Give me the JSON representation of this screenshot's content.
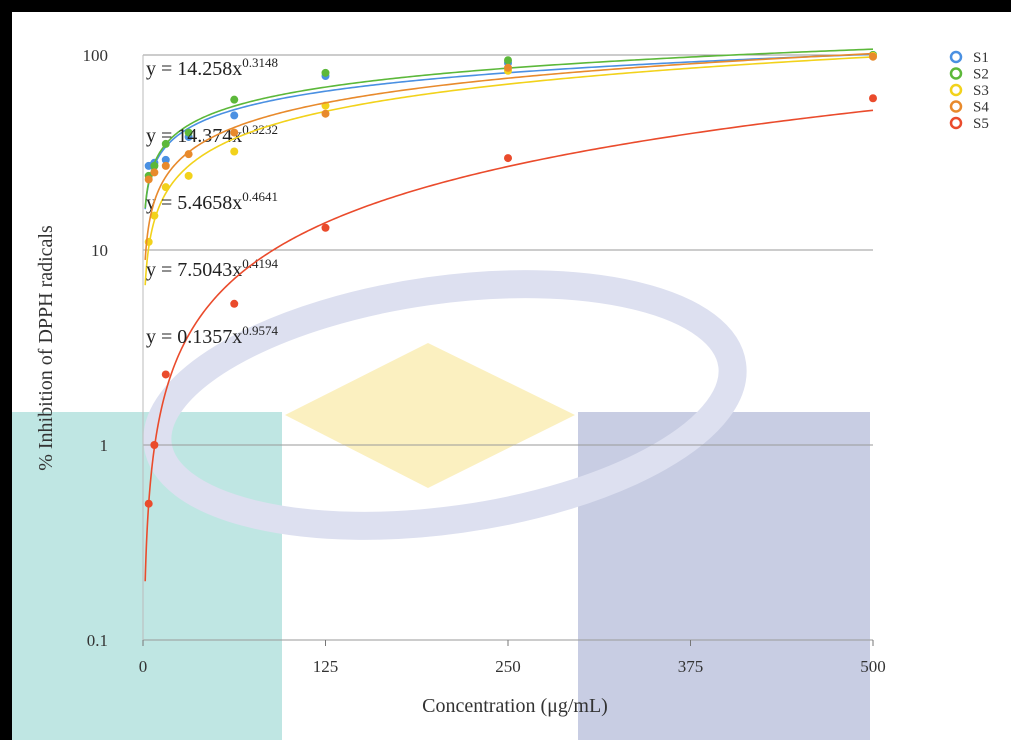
{
  "chart_data": {
    "type": "scatter",
    "x_label": "Concentration (μg/mL)",
    "y_label": "% Inhibition of DPPH radicals",
    "x": [
      3.9,
      7.8,
      15.6,
      31.25,
      62.5,
      125,
      250,
      500
    ],
    "xlim": [
      0,
      500
    ],
    "xticks": [
      0,
      125,
      250,
      375,
      500
    ],
    "ylim": [
      0.1,
      100
    ],
    "yticks": [
      0.1,
      1,
      10,
      100
    ],
    "log_y": true,
    "grid": true,
    "legend": "right",
    "series": [
      {
        "name": "S1",
        "color": "#4a90e2",
        "values": [
          27,
          28,
          29,
          38,
          49,
          78,
          91,
          100
        ],
        "trendline": {
          "coefficient": 14.258,
          "exponent": 0.3148,
          "label": "y = 14.258x"
        }
      },
      {
        "name": "S2",
        "color": "#5cb83a",
        "values": [
          24,
          27,
          35,
          40,
          59,
          81,
          94,
          100
        ],
        "trendline": {
          "coefficient": 14.374,
          "exponent": 0.3232,
          "label": "y = 14.374x"
        }
      },
      {
        "name": "S3",
        "color": "#f2d21b",
        "values": [
          11,
          15,
          21,
          24,
          32,
          55,
          83,
          99
        ],
        "trendline": {
          "coefficient": 5.4658,
          "exponent": 0.4641,
          "label": "y = 5.4658x"
        }
      },
      {
        "name": "S4",
        "color": "#e88a2c",
        "values": [
          23,
          25,
          27,
          31,
          40,
          50,
          86,
          98
        ],
        "trendline": {
          "coefficient": 7.5043,
          "exponent": 0.4194,
          "label": "y = 7.5043x"
        }
      },
      {
        "name": "S5",
        "color": "#ea4b2c",
        "values": [
          0.5,
          1.0,
          2.3,
          null,
          5.3,
          13,
          29.6,
          60
        ],
        "trendline": {
          "coefficient": 0.1357,
          "exponent": 0.9574,
          "label": "y = 0.1357x"
        }
      }
    ]
  }
}
